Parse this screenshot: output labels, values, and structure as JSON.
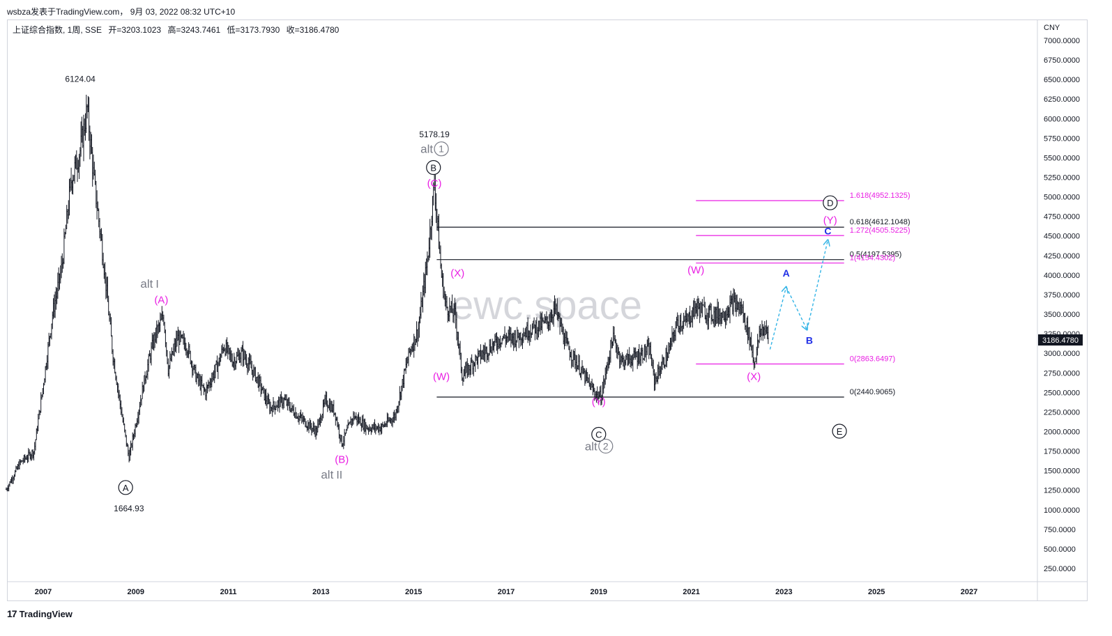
{
  "header": {
    "publisher_line": "wsbza发表于TradingView.com， 9月 03, 2022 08:32 UTC+10"
  },
  "legend": {
    "symbol": "上证综合指数, 1周, SSE",
    "open": "开=3203.1023",
    "high": "高=3243.7461",
    "low": "低=3173.7930",
    "close": "收=3186.4780"
  },
  "watermark": "ewc.space",
  "footer": {
    "logo_mark": "17",
    "logo_text": "TradingView"
  },
  "colors": {
    "candles": "#131722",
    "magenta": "#e91ee3",
    "blue": "#1f2ee6",
    "cyan": "#33b4e6",
    "gray": "#787b86",
    "price_tag_bg": "#131722"
  },
  "chart_data": {
    "type": "candlestick",
    "currency": "CNY",
    "current_price": "3186.4780",
    "ylim": [
      0,
      7400
    ],
    "xlim": [
      2006.2,
      2028.5
    ],
    "y_ticks": [
      "250.0000",
      "500.0000",
      "750.0000",
      "1000.0000",
      "1250.0000",
      "1500.0000",
      "1750.0000",
      "2000.0000",
      "2250.0000",
      "2500.0000",
      "2750.0000",
      "3000.0000",
      "3250.0000",
      "3500.0000",
      "3750.0000",
      "4000.0000",
      "4250.0000",
      "4500.0000",
      "4750.0000",
      "5000.0000",
      "5250.0000",
      "5500.0000",
      "5750.0000",
      "6000.0000",
      "6250.0000",
      "6500.0000",
      "6750.0000",
      "7000.0000"
    ],
    "x_ticks": [
      "2007",
      "2009",
      "2011",
      "2013",
      "2015",
      "2017",
      "2019",
      "2021",
      "2023",
      "2025",
      "2027"
    ],
    "price_path": [
      [
        2006.2,
        1260
      ],
      [
        2006.5,
        1600
      ],
      [
        2006.8,
        1750
      ],
      [
        2007.0,
        2600
      ],
      [
        2007.2,
        3500
      ],
      [
        2007.4,
        4100
      ],
      [
        2007.6,
        5200
      ],
      [
        2007.8,
        5600
      ],
      [
        2007.95,
        6124
      ],
      [
        2008.1,
        5200
      ],
      [
        2008.3,
        4200
      ],
      [
        2008.5,
        3000
      ],
      [
        2008.7,
        2200
      ],
      [
        2008.85,
        1664.93
      ],
      [
        2009.0,
        2100
      ],
      [
        2009.2,
        2700
      ],
      [
        2009.4,
        3200
      ],
      [
        2009.6,
        3478
      ],
      [
        2009.7,
        2800
      ],
      [
        2009.9,
        3200
      ],
      [
        2010.1,
        3100
      ],
      [
        2010.3,
        2700
      ],
      [
        2010.5,
        2500
      ],
      [
        2010.8,
        2900
      ],
      [
        2010.9,
        3100
      ],
      [
        2011.1,
        2900
      ],
      [
        2011.3,
        3000
      ],
      [
        2011.6,
        2700
      ],
      [
        2011.9,
        2300
      ],
      [
        2012.2,
        2400
      ],
      [
        2012.5,
        2200
      ],
      [
        2012.9,
        2000
      ],
      [
        2013.1,
        2400
      ],
      [
        2013.3,
        2250
      ],
      [
        2013.45,
        1849
      ],
      [
        2013.7,
        2200
      ],
      [
        2014.0,
        2050
      ],
      [
        2014.3,
        2050
      ],
      [
        2014.6,
        2200
      ],
      [
        2014.9,
        3000
      ],
      [
        2015.1,
        3300
      ],
      [
        2015.3,
        4200
      ],
      [
        2015.45,
        5178.19
      ],
      [
        2015.6,
        4000
      ],
      [
        2015.7,
        3600
      ],
      [
        2015.9,
        3500
      ],
      [
        2016.05,
        2700
      ],
      [
        2016.3,
        2900
      ],
      [
        2016.6,
        3050
      ],
      [
        2016.9,
        3200
      ],
      [
        2017.2,
        3200
      ],
      [
        2017.5,
        3300
      ],
      [
        2017.9,
        3400
      ],
      [
        2018.05,
        3587
      ],
      [
        2018.3,
        3100
      ],
      [
        2018.6,
        2800
      ],
      [
        2018.9,
        2500
      ],
      [
        2019.05,
        2440.9
      ],
      [
        2019.3,
        3200
      ],
      [
        2019.5,
        2900
      ],
      [
        2019.8,
        2950
      ],
      [
        2020.1,
        3050
      ],
      [
        2020.2,
        2650
      ],
      [
        2020.5,
        3000
      ],
      [
        2020.7,
        3400
      ],
      [
        2020.9,
        3400
      ],
      [
        2021.1,
        3600
      ],
      [
        2021.4,
        3500
      ],
      [
        2021.7,
        3500
      ],
      [
        2021.9,
        3650
      ],
      [
        2022.1,
        3550
      ],
      [
        2022.3,
        3100
      ],
      [
        2022.35,
        2863.65
      ],
      [
        2022.5,
        3300
      ],
      [
        2022.6,
        3300
      ],
      [
        2022.67,
        3186
      ]
    ],
    "horizontal_levels": [
      {
        "label": "1.618(4952.1325)",
        "value": 4952.1325,
        "color": "magenta",
        "x0": 2021.1
      },
      {
        "label": "0.618(4612.1048)",
        "value": 4612.1048,
        "color": "black",
        "x0": 2015.5
      },
      {
        "label": "1.272(4505.5225)",
        "value": 4505.5225,
        "color": "magenta",
        "x0": 2021.1
      },
      {
        "label": "0.5(4197.5395)",
        "value": 4197.5395,
        "color": "black",
        "x0": 2015.5
      },
      {
        "label": "1(4154.4302)",
        "value": 4154.4302,
        "color": "magenta",
        "x0": 2021.1
      },
      {
        "label": "0(2863.6497)",
        "value": 2863.6497,
        "color": "magenta",
        "x0": 2021.1
      },
      {
        "label": "0(2440.9065)",
        "value": 2440.9065,
        "color": "black",
        "x0": 2015.5
      }
    ],
    "levels_x_end": 2024.3,
    "projection_path": [
      [
        2022.7,
        3050
      ],
      [
        2023.05,
        3850
      ],
      [
        2023.5,
        3300
      ],
      [
        2023.95,
        4450
      ]
    ],
    "annotations": [
      {
        "text": "6124.04",
        "x": 2007.8,
        "y": 6470,
        "color": "black",
        "kind": "price"
      },
      {
        "text": "1664.93",
        "x": 2008.85,
        "y": 980,
        "color": "black",
        "kind": "price"
      },
      {
        "text": "5178.19",
        "x": 2015.45,
        "y": 5760,
        "color": "black",
        "kind": "price"
      },
      {
        "text": "A",
        "x": 2008.78,
        "y": 1240,
        "color": "black",
        "kind": "circle"
      },
      {
        "text": "B",
        "x": 2015.43,
        "y": 5330,
        "color": "black",
        "kind": "circle"
      },
      {
        "text": "C",
        "x": 2019.0,
        "y": 1920,
        "color": "black",
        "kind": "circle"
      },
      {
        "text": "D",
        "x": 2024.0,
        "y": 4880,
        "color": "black",
        "kind": "circle"
      },
      {
        "text": "E",
        "x": 2024.2,
        "y": 1960,
        "color": "black",
        "kind": "circle"
      },
      {
        "text": "(A)",
        "x": 2009.55,
        "y": 3640,
        "color": "magenta",
        "kind": "label"
      },
      {
        "text": "(B)",
        "x": 2013.45,
        "y": 1600,
        "color": "magenta",
        "kind": "label"
      },
      {
        "text": "(C)",
        "x": 2015.45,
        "y": 5130,
        "color": "magenta",
        "kind": "label"
      },
      {
        "text": "(W)",
        "x": 2015.6,
        "y": 2660,
        "color": "magenta",
        "kind": "label"
      },
      {
        "text": "(X)",
        "x": 2015.95,
        "y": 3980,
        "color": "magenta",
        "kind": "label"
      },
      {
        "text": "(Y)",
        "x": 2019.0,
        "y": 2340,
        "color": "magenta",
        "kind": "label"
      },
      {
        "text": "(W)",
        "x": 2021.1,
        "y": 4020,
        "color": "magenta",
        "kind": "label"
      },
      {
        "text": "(X)",
        "x": 2022.35,
        "y": 2660,
        "color": "magenta",
        "kind": "label"
      },
      {
        "text": "(Y)",
        "x": 2024.0,
        "y": 4660,
        "color": "magenta",
        "kind": "label"
      },
      {
        "text": "A",
        "x": 2023.05,
        "y": 3980,
        "color": "blue",
        "kind": "label"
      },
      {
        "text": "B",
        "x": 2023.55,
        "y": 3120,
        "color": "blue",
        "kind": "label"
      },
      {
        "text": "C",
        "x": 2023.95,
        "y": 4520,
        "color": "blue",
        "kind": "label"
      }
    ],
    "alt_labels": [
      {
        "text": "alt",
        "num": "1",
        "x": 2015.45,
        "y": 5560,
        "style": "circle"
      },
      {
        "text": "alt",
        "num": "2",
        "x": 2019.0,
        "y": 1760,
        "style": "circle"
      },
      {
        "text": "alt",
        "num": "I",
        "x": 2009.4,
        "y": 3840,
        "style": "roman"
      },
      {
        "text": "alt",
        "num": "II",
        "x": 2013.3,
        "y": 1400,
        "style": "roman"
      }
    ]
  }
}
